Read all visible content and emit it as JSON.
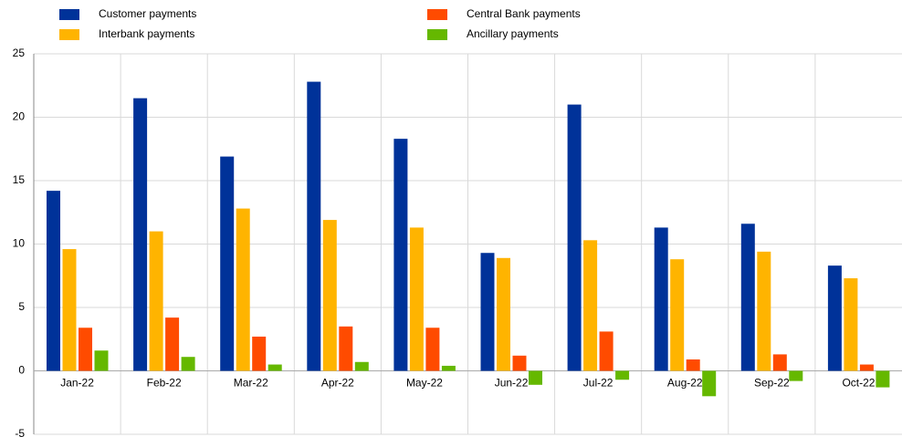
{
  "chart_data": {
    "type": "bar",
    "categories": [
      "Jan-22",
      "Feb-22",
      "Mar-22",
      "Apr-22",
      "May-22",
      "Jun-22",
      "Jul-22",
      "Aug-22",
      "Sep-22",
      "Oct-22"
    ],
    "series": [
      {
        "name": "Customer payments",
        "color": "#003299",
        "values": [
          14.2,
          21.5,
          16.9,
          22.8,
          18.3,
          9.3,
          21.0,
          11.3,
          11.6,
          8.3
        ]
      },
      {
        "name": "Interbank payments",
        "color": "#ffb400",
        "values": [
          9.6,
          11.0,
          12.8,
          11.9,
          11.3,
          8.9,
          10.3,
          8.8,
          9.4,
          7.3
        ]
      },
      {
        "name": "Central Bank payments",
        "color": "#ff4b00",
        "values": [
          3.4,
          4.2,
          2.7,
          3.5,
          3.4,
          1.2,
          3.1,
          0.9,
          1.3,
          0.5
        ]
      },
      {
        "name": "Ancillary payments",
        "color": "#65b800",
        "values": [
          1.6,
          1.1,
          0.5,
          0.7,
          0.4,
          -1.1,
          -0.7,
          -2.0,
          -0.8,
          -1.3
        ]
      }
    ],
    "ylim": [
      -5,
      25
    ],
    "yticks": [
      -5,
      0,
      5,
      10,
      15,
      20,
      25
    ],
    "grid": true,
    "legend": "top"
  }
}
